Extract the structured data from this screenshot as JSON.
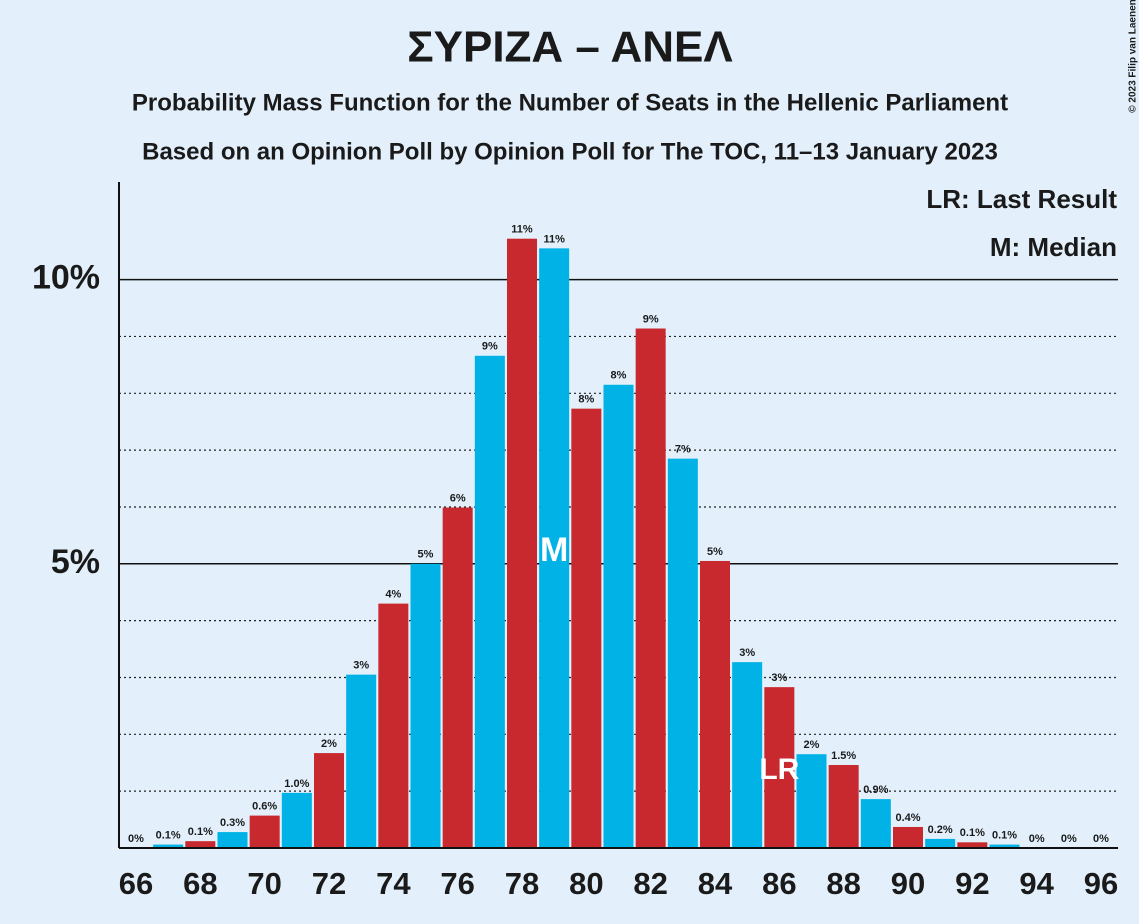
{
  "chart_data": {
    "type": "bar",
    "title": "ΣΥΡΙΖΑ – ΑΝΕΛ",
    "subtitle": "Probability Mass Function for the Number of Seats in the Hellenic Parliament",
    "subtitle2": "Based on an Opinion Poll by Opinion Poll for The TOC, 11–13 January 2023",
    "copyright": "© 2023 Filip van Laenen",
    "legend": [
      "LR: Last Result",
      "M: Median"
    ],
    "categories": [
      66,
      null,
      68,
      null,
      70,
      null,
      72,
      null,
      74,
      null,
      76,
      null,
      78,
      null,
      80,
      null,
      82,
      null,
      84,
      null,
      86,
      null,
      88,
      null,
      90,
      null,
      92,
      null,
      94,
      null,
      96
    ],
    "values": [
      0,
      0.06,
      0.12,
      0.28,
      0.57,
      0.97,
      1.67,
      3.05,
      4.3,
      5.0,
      5.99,
      8.66,
      10.72,
      10.55,
      7.73,
      8.15,
      9.14,
      6.85,
      5.05,
      3.27,
      2.83,
      1.65,
      1.46,
      0.86,
      0.37,
      0.16,
      0.1,
      0.06,
      0,
      0,
      0
    ],
    "value_labels": [
      "0%",
      "0.1%",
      "0.1%",
      "0.3%",
      "0.6%",
      "1.0%",
      "2%",
      "3%",
      "4%",
      "5%",
      "6%",
      "9%",
      "11%",
      "11%",
      "8%",
      "8%",
      "9%",
      "7%",
      "5%",
      "3%",
      "3%",
      "2%",
      "1.5%",
      "0.9%",
      "0.4%",
      "0.2%",
      "0.1%",
      "0.1%",
      "0%",
      "0%",
      "0%"
    ],
    "colors": [
      "#c8292e",
      "#00b2e5"
    ],
    "ylim": [
      0,
      11.7
    ],
    "yticks": [
      {
        "value": 5,
        "label": "5%"
      },
      {
        "value": 10,
        "label": "10%"
      }
    ],
    "minor_yticks": [
      1,
      2,
      3,
      4,
      6,
      7,
      8,
      9
    ],
    "median": {
      "label": "M",
      "index": 13
    },
    "last_result": {
      "label": "LR",
      "index": 20
    }
  }
}
